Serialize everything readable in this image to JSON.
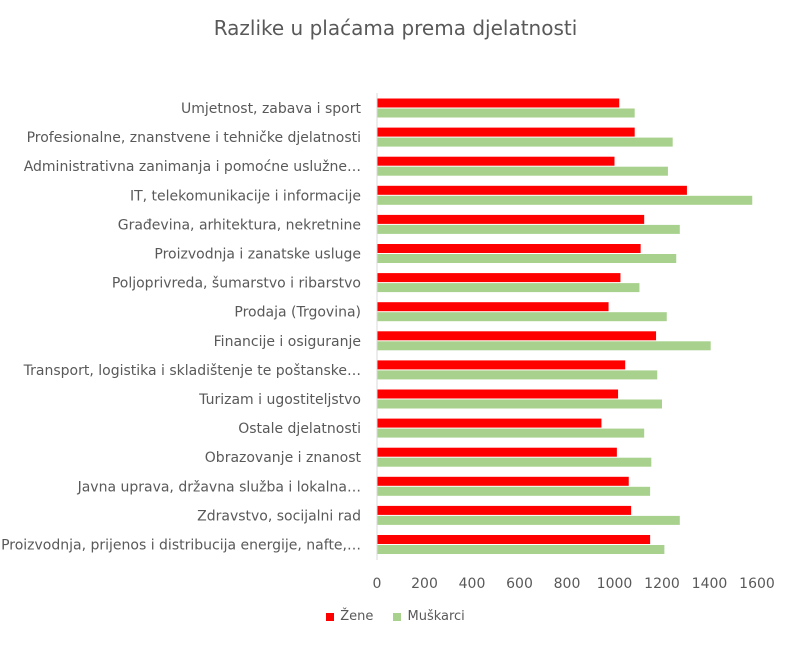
{
  "chart_data": {
    "type": "bar",
    "orientation": "horizontal",
    "title": "Razlike u plaćama prema djelatnosti",
    "xlabel": "",
    "ylabel": "",
    "xlim": [
      0,
      1600
    ],
    "x_ticks": [
      0,
      200,
      400,
      600,
      800,
      1000,
      1200,
      1400,
      1600
    ],
    "grid": false,
    "legend_position": "bottom",
    "categories": [
      "Umjetnost, zabava i sport",
      "Profesionalne, znanstvene i tehničke djelatnosti",
      "Administrativna zanimanja i pomoćne uslužne…",
      "IT, telekomunikacije i informacije",
      "Građevina, arhitektura, nekretnine",
      "Proizvodnja i zanatske usluge",
      "Poljoprivreda, šumarstvo i ribarstvo",
      "Prodaja (Trgovina)",
      "Financije i osiguranje",
      "Transport, logistika i skladištenje te poštanske…",
      "Turizam i ugostiteljstvo",
      "Ostale djelatnosti",
      "Obrazovanje i znanost",
      "Javna uprava, državna služba i lokalna…",
      "Zdravstvo, socijalni rad",
      "Proizvodnja, prijenos i distribucija energije, nafte,…"
    ],
    "series": [
      {
        "name": "Žene",
        "color": "#ff0000",
        "values": [
          1020,
          1085,
          1000,
          1305,
          1125,
          1110,
          1025,
          975,
          1175,
          1045,
          1015,
          945,
          1010,
          1060,
          1070,
          1150
        ]
      },
      {
        "name": "Muškarci",
        "color": "#a9d18e",
        "values": [
          1085,
          1245,
          1225,
          1580,
          1275,
          1260,
          1105,
          1220,
          1405,
          1180,
          1200,
          1125,
          1155,
          1150,
          1275,
          1210
        ]
      }
    ]
  }
}
